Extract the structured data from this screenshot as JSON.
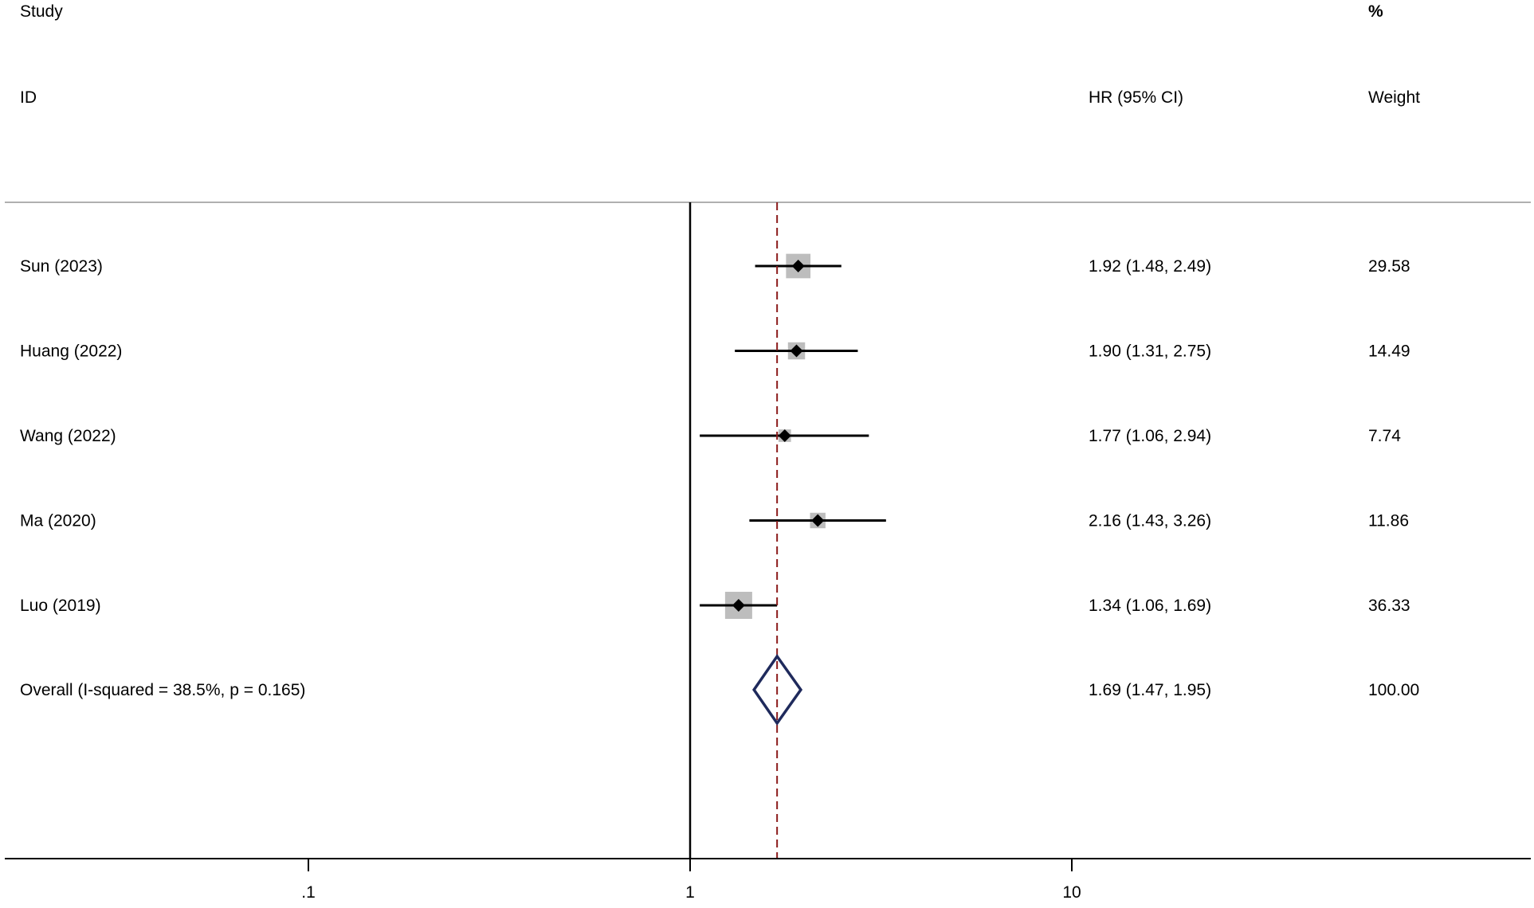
{
  "chart_data": {
    "type": "forest",
    "headers": {
      "study_line1": "Study",
      "study_line2": "ID",
      "effect": "HR (95% CI)",
      "weight_line1": "%",
      "weight_line2": "Weight"
    },
    "x_scale": "log",
    "x_ticks": [
      {
        "value": 0.1,
        "label": ".1"
      },
      {
        "value": 1,
        "label": "1"
      },
      {
        "value": 10,
        "label": "10"
      }
    ],
    "null_line": 1,
    "studies": [
      {
        "label": "Sun (2023)",
        "hr": 1.92,
        "lower": 1.48,
        "upper": 2.49,
        "ci_text": "1.92 (1.48, 2.49)",
        "weight": 29.58,
        "weight_text": "29.58"
      },
      {
        "label": "Huang (2022)",
        "hr": 1.9,
        "lower": 1.31,
        "upper": 2.75,
        "ci_text": "1.90 (1.31, 2.75)",
        "weight": 14.49,
        "weight_text": "14.49"
      },
      {
        "label": "Wang (2022)",
        "hr": 1.77,
        "lower": 1.06,
        "upper": 2.94,
        "ci_text": "1.77 (1.06, 2.94)",
        "weight": 7.74,
        "weight_text": "7.74"
      },
      {
        "label": "Ma (2020)",
        "hr": 2.16,
        "lower": 1.43,
        "upper": 3.26,
        "ci_text": "2.16 (1.43, 3.26)",
        "weight": 11.86,
        "weight_text": "11.86"
      },
      {
        "label": "Luo (2019)",
        "hr": 1.34,
        "lower": 1.06,
        "upper": 1.69,
        "ci_text": "1.34 (1.06, 1.69)",
        "weight": 36.33,
        "weight_text": "36.33"
      }
    ],
    "overall": {
      "label": "Overall  (I-squared = 38.5%, p = 0.165)",
      "hr": 1.69,
      "lower": 1.47,
      "upper": 1.95,
      "ci_text": "1.69 (1.47, 1.95)",
      "weight_text": "100.00"
    },
    "colors": {
      "box": "#bdbdbd",
      "diamond": "#1f2a5c",
      "overall_line": "#8b1a1a",
      "axis": "#000000",
      "header_rule": "#b0b0b0"
    }
  }
}
